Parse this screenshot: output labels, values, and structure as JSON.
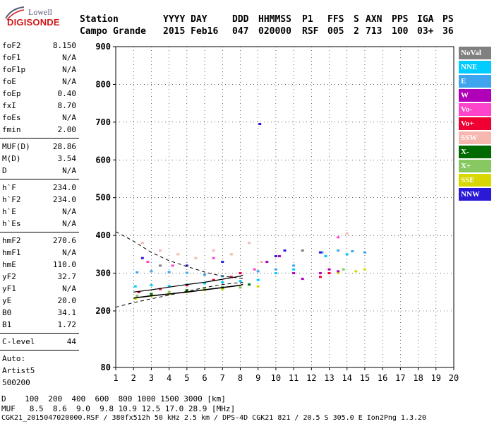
{
  "logo": {
    "lowell": "Lowell",
    "digisonde": "DIGISONDE"
  },
  "header": {
    "row1": {
      "station_label": "Station",
      "yyyy_day": "YYYY DAY",
      "ddd": "DDD",
      "hhmmss": "HHMMSS",
      "p1": "P1",
      "ffs": "FFS",
      "s": "S",
      "axn": "AXN",
      "pps": "PPS",
      "iga": "IGA",
      "ps": "PS"
    },
    "row2": {
      "station": "Campo Grande",
      "date": "2015 Feb16",
      "ddd": "047",
      "hhmmss": "020000",
      "p1": "RSF",
      "ffs": "005",
      "s": "2",
      "axn": "713",
      "pps": "100",
      "iga": "03+",
      "ps": "36"
    }
  },
  "params": {
    "group1": [
      {
        "label": "foF2",
        "value": "8.150"
      },
      {
        "label": "foF1",
        "value": "N/A"
      },
      {
        "label": "foF1p",
        "value": "N/A"
      },
      {
        "label": "foE",
        "value": "N/A"
      },
      {
        "label": "foEp",
        "value": "0.40"
      },
      {
        "label": "fxI",
        "value": "8.70"
      },
      {
        "label": "foEs",
        "value": "N/A"
      },
      {
        "label": "fmin",
        "value": "2.00"
      }
    ],
    "group2": [
      {
        "label": "MUF(D)",
        "value": "28.86"
      },
      {
        "label": "M(D)",
        "value": "3.54"
      },
      {
        "label": "D",
        "value": "N/A"
      }
    ],
    "group3": [
      {
        "label": "h`F",
        "value": "234.0"
      },
      {
        "label": "h`F2",
        "value": "234.0"
      },
      {
        "label": "h`E",
        "value": "N/A"
      },
      {
        "label": "h`Es",
        "value": "N/A"
      }
    ],
    "group4": [
      {
        "label": "hmF2",
        "value": "270.6"
      },
      {
        "label": "hmF1",
        "value": "N/A"
      },
      {
        "label": "hmE",
        "value": "110.0"
      },
      {
        "label": "yF2",
        "value": "32.7"
      },
      {
        "label": "yF1",
        "value": "N/A"
      },
      {
        "label": "yE",
        "value": "20.0"
      },
      {
        "label": "B0",
        "value": "34.1"
      },
      {
        "label": "B1",
        "value": "1.72"
      }
    ],
    "group5": [
      {
        "label": "C-level",
        "value": "44"
      }
    ],
    "auto": [
      "Auto:",
      "Artist5",
      "500200"
    ]
  },
  "legend": [
    {
      "label": "NoVal",
      "bg": "#808080",
      "fg": "#ffffff"
    },
    {
      "label": "NNE",
      "bg": "#00ccff",
      "fg": "#ffffff"
    },
    {
      "label": "E",
      "bg": "#3fa4ee",
      "fg": "#ffffff"
    },
    {
      "label": "W",
      "bg": "#b000b8",
      "fg": "#ffffff"
    },
    {
      "label": "Vo-",
      "bg": "#ff44cc",
      "fg": "#ffffff"
    },
    {
      "label": "Vo+",
      "bg": "#ee0033",
      "fg": "#ffffff"
    },
    {
      "label": "SSW",
      "bg": "#f6b7b0",
      "fg": "#ffffff"
    },
    {
      "label": "X-",
      "bg": "#006a00",
      "fg": "#ffffff"
    },
    {
      "label": "X+",
      "bg": "#88c860",
      "fg": "#ffffff"
    },
    {
      "label": "SSE",
      "bg": "#d8d800",
      "fg": "#ffffff"
    },
    {
      "label": "NNW",
      "bg": "#2a1ad8",
      "fg": "#ffffff"
    }
  ],
  "footer": {
    "distance_row": "D    100  200  400  600  800 1000 1500 3000 [km]",
    "muf_row": "MUF   8.5  8.6  9.0  9.8 10.9 12.5 17.0 28.9 [MHz]",
    "file_row": "CGK21_2015047020000.RSF / 380fx512h 50 kHz 2.5 km / DPS-4D CGK21 821 / 20.5 S 305.0 E Ion2Png 1.3.20"
  },
  "chart_data": {
    "type": "scatter",
    "title": "",
    "xlabel": "",
    "ylabel": "",
    "xlim": [
      1,
      20
    ],
    "ylim": [
      80,
      900
    ],
    "x_ticks": [
      1,
      2,
      3,
      4,
      5,
      6,
      7,
      8,
      9,
      10,
      11,
      12,
      13,
      14,
      15,
      16,
      17,
      18,
      19,
      20
    ],
    "y_ticks": [
      80,
      200,
      300,
      400,
      500,
      600,
      700,
      800,
      900
    ],
    "grid": true,
    "legend_position": "right",
    "series": [
      {
        "name": "E",
        "color": "#3fa4ee",
        "points": [
          [
            2.2,
            302
          ],
          [
            3.0,
            305
          ],
          [
            4.0,
            303
          ],
          [
            5.0,
            301
          ],
          [
            6.0,
            296
          ],
          [
            7.0,
            292
          ],
          [
            8.0,
            300
          ],
          [
            9.0,
            305
          ],
          [
            10.0,
            310
          ],
          [
            11.0,
            320
          ],
          [
            12.6,
            355
          ],
          [
            13.5,
            360
          ],
          [
            14.3,
            358
          ],
          [
            15.0,
            355
          ]
        ]
      },
      {
        "name": "NNE",
        "color": "#00ccff",
        "points": [
          [
            2.1,
            265
          ],
          [
            3.0,
            268
          ],
          [
            4.0,
            266
          ],
          [
            5.0,
            270
          ],
          [
            6.0,
            273
          ],
          [
            7.0,
            276
          ],
          [
            8.0,
            279
          ],
          [
            9.0,
            282
          ],
          [
            10.0,
            300
          ],
          [
            11.0,
            310
          ],
          [
            12.8,
            345
          ],
          [
            14.0,
            350
          ]
        ]
      },
      {
        "name": "SSE",
        "color": "#d8d800",
        "points": [
          [
            2.1,
            232
          ],
          [
            3.0,
            240
          ],
          [
            4.0,
            245
          ],
          [
            5.0,
            250
          ],
          [
            6.0,
            255
          ],
          [
            7.0,
            258
          ],
          [
            8.0,
            262
          ],
          [
            9.0,
            265
          ],
          [
            13.5,
            300
          ],
          [
            14.5,
            305
          ],
          [
            15.0,
            310
          ]
        ]
      },
      {
        "name": "W",
        "color": "#b000b8",
        "points": [
          [
            9.5,
            330
          ],
          [
            10.2,
            345
          ],
          [
            11.0,
            300
          ],
          [
            11.5,
            285
          ],
          [
            12.5,
            300
          ],
          [
            13.0,
            310
          ],
          [
            13.5,
            305
          ]
        ]
      },
      {
        "name": "SSW",
        "color": "#f6b7b0",
        "points": [
          [
            2.5,
            380
          ],
          [
            3.5,
            360
          ],
          [
            4.5,
            350
          ],
          [
            5.5,
            340
          ],
          [
            6.5,
            360
          ],
          [
            7.5,
            350
          ],
          [
            8.5,
            380
          ],
          [
            9.2,
            330
          ],
          [
            14.0,
            405
          ]
        ]
      },
      {
        "name": "X+",
        "color": "#88c860",
        "points": [
          [
            2.2,
            240
          ],
          [
            4.0,
            250
          ],
          [
            6.0,
            260
          ],
          [
            8.0,
            262
          ],
          [
            13.8,
            310
          ]
        ]
      },
      {
        "name": "X-",
        "color": "#006a00",
        "points": [
          [
            3.0,
            245
          ],
          [
            5.0,
            255
          ],
          [
            7.0,
            262
          ],
          [
            8.5,
            270
          ]
        ]
      },
      {
        "name": "Vo+",
        "color": "#ee0033",
        "points": [
          [
            2.3,
            250
          ],
          [
            3.5,
            258
          ],
          [
            5.0,
            268
          ],
          [
            6.5,
            282
          ],
          [
            7.5,
            290
          ],
          [
            8.0,
            300
          ],
          [
            12.5,
            290
          ],
          [
            13.0,
            300
          ]
        ]
      },
      {
        "name": "Vo-",
        "color": "#ff44cc",
        "points": [
          [
            2.8,
            330
          ],
          [
            4.2,
            320
          ],
          [
            6.5,
            340
          ],
          [
            8.8,
            310
          ],
          [
            13.5,
            395
          ]
        ]
      },
      {
        "name": "NNW",
        "color": "#2a1ad8",
        "points": [
          [
            2.5,
            340
          ],
          [
            5.0,
            320
          ],
          [
            7.0,
            330
          ],
          [
            10.0,
            345
          ],
          [
            10.5,
            360
          ],
          [
            12.5,
            355
          ],
          [
            9.1,
            695
          ]
        ]
      },
      {
        "name": "NoVal",
        "color": "#808080",
        "points": [
          [
            3.5,
            320
          ],
          [
            11.5,
            360
          ]
        ]
      }
    ],
    "profile_curve": [
      [
        2.0,
        234
      ],
      [
        3.0,
        240
      ],
      [
        4.0,
        245
      ],
      [
        5.0,
        250
      ],
      [
        6.0,
        256
      ],
      [
        7.0,
        262
      ],
      [
        8.0,
        268
      ],
      [
        8.15,
        270.6
      ]
    ],
    "upper_curve": [
      [
        2.0,
        250
      ],
      [
        3.0,
        256
      ],
      [
        4.0,
        263
      ],
      [
        5.0,
        270
      ],
      [
        6.0,
        276
      ],
      [
        7.0,
        284
      ],
      [
        8.0,
        292
      ],
      [
        8.15,
        295
      ]
    ],
    "muf_dashed_upper": [
      [
        1.0,
        410
      ],
      [
        2.0,
        385
      ],
      [
        3.0,
        355
      ],
      [
        4.0,
        333
      ],
      [
        5.0,
        318
      ],
      [
        6.0,
        303
      ],
      [
        7.0,
        292
      ],
      [
        8.15,
        286
      ]
    ],
    "muf_dashed_lower": [
      [
        1.0,
        210
      ],
      [
        2.0,
        222
      ],
      [
        3.0,
        232
      ],
      [
        4.0,
        242
      ],
      [
        5.0,
        252
      ],
      [
        6.0,
        262
      ],
      [
        7.0,
        270
      ],
      [
        8.15,
        276
      ]
    ]
  }
}
